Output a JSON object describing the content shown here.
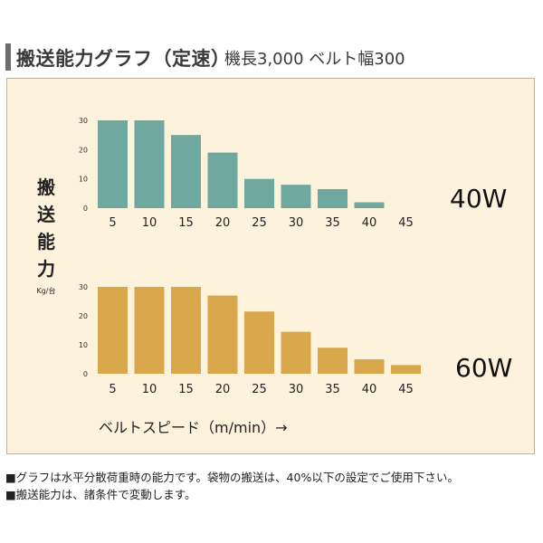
{
  "header": {
    "title": "搬送能力グラフ（定速）",
    "subtitle": "機長3,000 ベルト幅300"
  },
  "y_label_chars": [
    "搬",
    "送",
    "能",
    "力"
  ],
  "y_unit": "Kg/台",
  "x_axis_label": "ベルトスピード（m/min）→",
  "colors": {
    "panel": "#fdf3dc",
    "series_40w": "#6fa89e",
    "series_60w": "#d8a64b"
  },
  "chart_data": [
    {
      "type": "bar",
      "categories": [
        "5",
        "10",
        "15",
        "20",
        "25",
        "30",
        "35",
        "40",
        "45"
      ],
      "series": [
        {
          "name": "40W",
          "values": [
            30,
            30,
            25,
            19,
            10,
            8,
            6.5,
            2,
            0
          ]
        }
      ],
      "ylim": [
        0,
        30
      ],
      "yticks": [
        "0",
        "10",
        "20",
        "30"
      ],
      "grid": false
    },
    {
      "type": "bar",
      "categories": [
        "5",
        "10",
        "15",
        "20",
        "25",
        "30",
        "35",
        "40",
        "45"
      ],
      "series": [
        {
          "name": "60W",
          "values": [
            30,
            30,
            30,
            27,
            21.5,
            14.5,
            9,
            5,
            3
          ]
        }
      ],
      "ylim": [
        0,
        30
      ],
      "yticks": [
        "0",
        "10",
        "20",
        "30"
      ],
      "grid": false
    }
  ],
  "notes": [
    "■グラフは水平分散荷重時の能力です。袋物の搬送は、40%以下の設定でご使用下さい。",
    "■搬送能力は、諸条件で変動します。"
  ]
}
